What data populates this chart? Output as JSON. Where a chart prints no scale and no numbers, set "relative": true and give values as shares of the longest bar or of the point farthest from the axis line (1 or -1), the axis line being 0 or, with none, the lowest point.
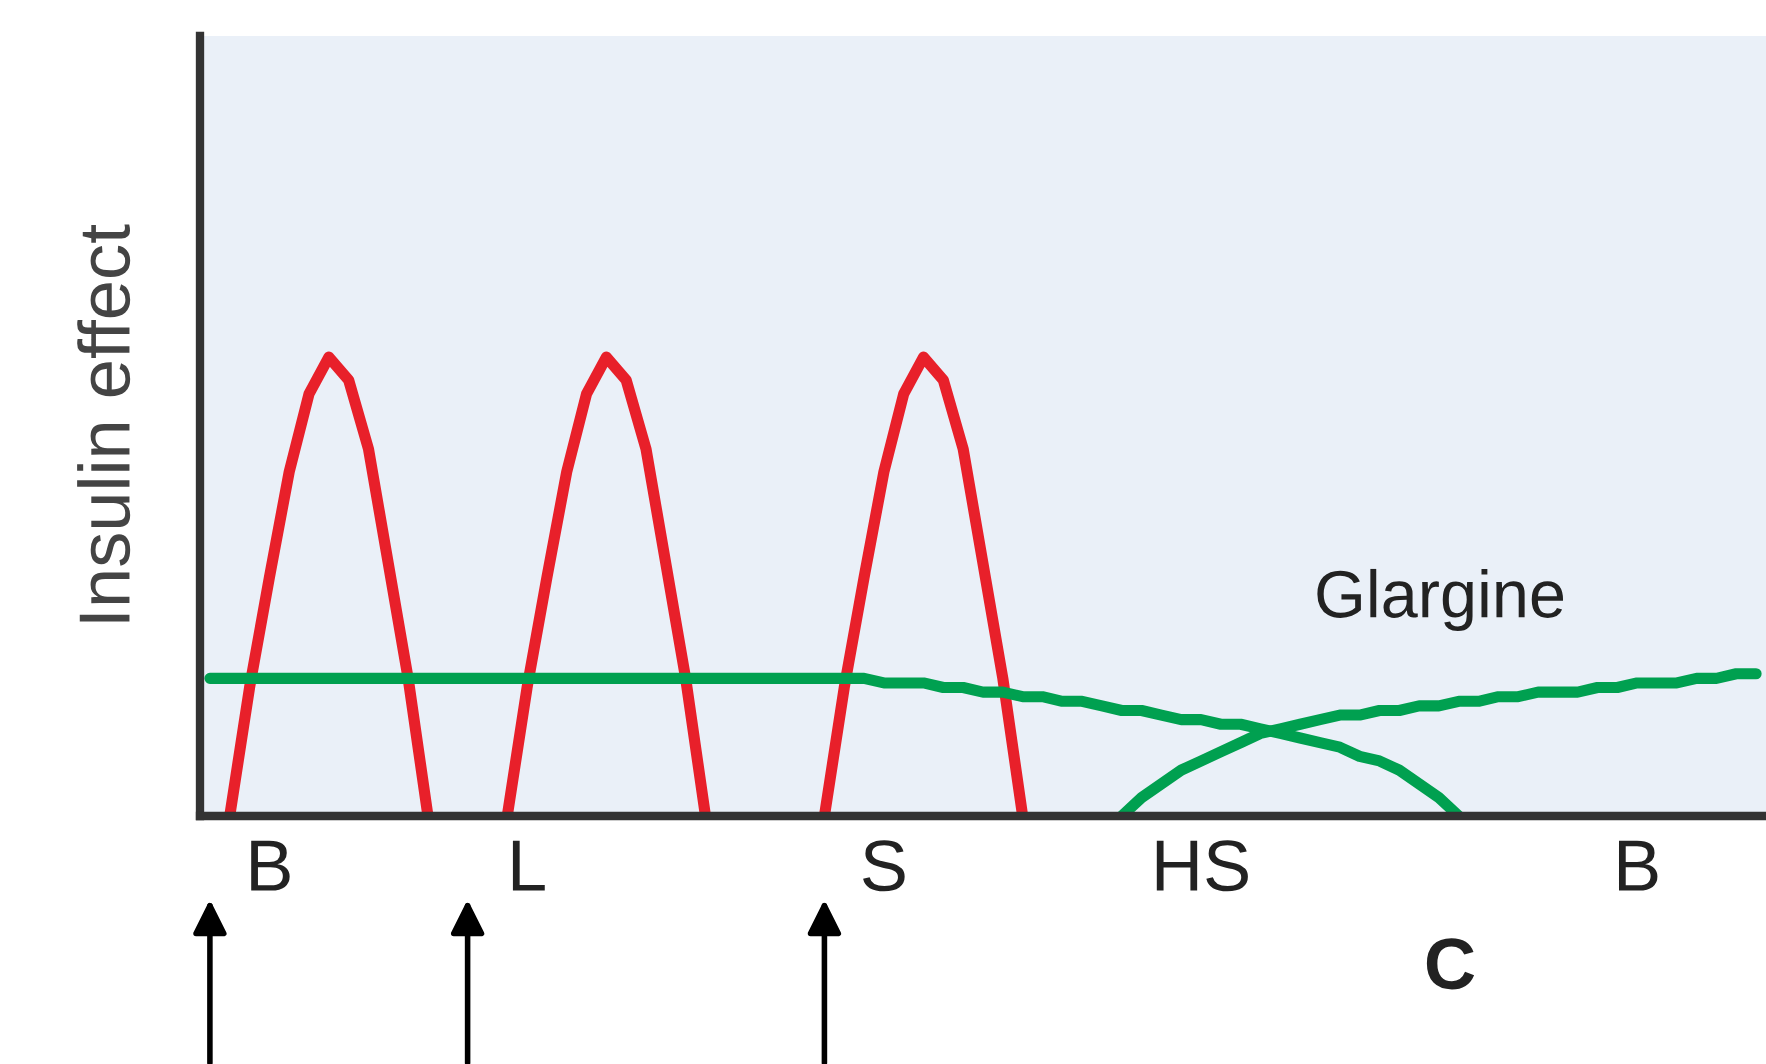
{
  "chart_data": {
    "type": "line",
    "relative": true,
    "ylabel": "Insulin effect",
    "categories": [
      null,
      null,
      null,
      "B",
      null,
      null,
      null,
      null,
      null,
      null,
      null,
      null,
      null,
      null,
      null,
      null,
      "L",
      null,
      null,
      null,
      null,
      null,
      null,
      null,
      null,
      null,
      null,
      null,
      null,
      null,
      null,
      null,
      null,
      null,
      "S",
      null,
      null,
      null,
      null,
      null,
      null,
      null,
      null,
      null,
      null,
      null,
      null,
      null,
      null,
      null,
      "HS",
      null,
      null,
      null,
      null,
      null,
      null,
      null,
      null,
      null,
      null,
      null,
      null,
      null,
      null,
      null,
      null,
      null,
      null,
      null,
      null,
      null,
      "B",
      null,
      null,
      null,
      null,
      null,
      null
    ],
    "series": [
      {
        "color": "#e8202a",
        "values": [
          null,
          0,
          0.28,
          0.52,
          0.75,
          0.92,
          1,
          0.95,
          0.8,
          0.55,
          0.3,
          0,
          null,
          null,
          null,
          0,
          0.28,
          0.52,
          0.75,
          0.92,
          1,
          0.95,
          0.8,
          0.55,
          0.3,
          0,
          null,
          null,
          null,
          null,
          null,
          0,
          0.28,
          0.52,
          0.75,
          0.92,
          1,
          0.95,
          0.8,
          0.55,
          0.3,
          0,
          null,
          null,
          null,
          null,
          null,
          null,
          null,
          null,
          null,
          null,
          null,
          null,
          null,
          null,
          null,
          null,
          null,
          null,
          null,
          null,
          null,
          null,
          null,
          null,
          null,
          null,
          null,
          null,
          null,
          null,
          null,
          null,
          null,
          null,
          null,
          null,
          null
        ]
      },
      {
        "color": "#00a050",
        "values": [
          0.3,
          0.3,
          0.3,
          0.3,
          0.3,
          0.3,
          0.3,
          0.3,
          0.3,
          0.3,
          0.3,
          0.3,
          0.3,
          0.3,
          0.3,
          0.3,
          0.3,
          0.3,
          0.3,
          0.3,
          0.3,
          0.3,
          0.3,
          0.3,
          0.3,
          0.3,
          0.3,
          0.3,
          0.3,
          0.3,
          0.3,
          0.3,
          0.3,
          0.3,
          0.29,
          0.29,
          0.29,
          0.28,
          0.28,
          0.27,
          0.27,
          0.26,
          0.26,
          0.25,
          0.25,
          0.24,
          0.23,
          0.23,
          0.22,
          0.21,
          0.21,
          0.2,
          0.2,
          0.19,
          0.18,
          0.17,
          0.16,
          0.15,
          0.13,
          0.12,
          0.1,
          0.07,
          0.04,
          0,
          null,
          null,
          null,
          null,
          null,
          null,
          null,
          null,
          null,
          null,
          null,
          null,
          null,
          null,
          null
        ]
      },
      {
        "color": "#00a050",
        "values": [
          null,
          null,
          null,
          null,
          null,
          null,
          null,
          null,
          null,
          null,
          null,
          null,
          null,
          null,
          null,
          null,
          null,
          null,
          null,
          null,
          null,
          null,
          null,
          null,
          null,
          null,
          null,
          null,
          null,
          null,
          null,
          null,
          null,
          null,
          null,
          null,
          null,
          null,
          null,
          null,
          null,
          null,
          null,
          null,
          null,
          null,
          0,
          0.04,
          0.07,
          0.1,
          0.12,
          0.14,
          0.16,
          0.18,
          0.19,
          0.2,
          0.21,
          0.22,
          0.22,
          0.23,
          0.23,
          0.24,
          0.24,
          0.25,
          0.25,
          0.26,
          0.26,
          0.27,
          0.27,
          0.27,
          0.28,
          0.28,
          0.29,
          0.29,
          0.29,
          0.3,
          0.3,
          0.31,
          0.31
        ]
      }
    ],
    "annotations": [
      "Glargine",
      "C"
    ],
    "grid": false,
    "marker": "none",
    "line_style": "solid"
  }
}
